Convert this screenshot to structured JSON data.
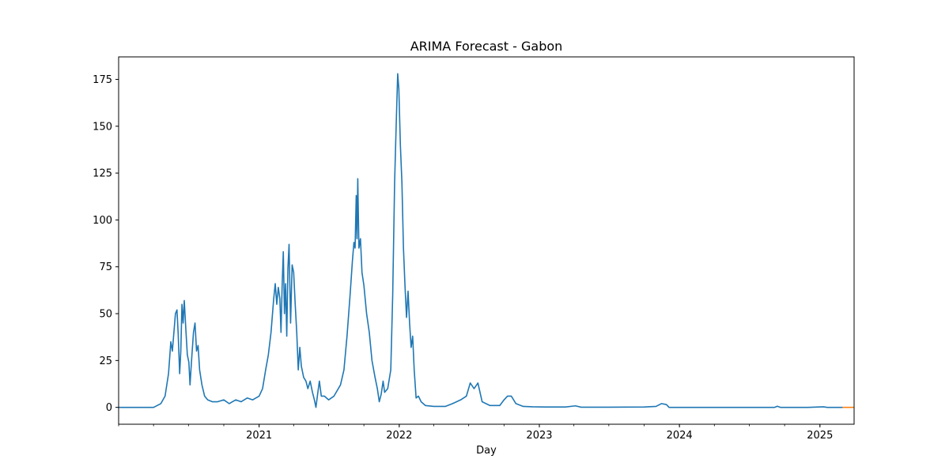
{
  "chart_data": {
    "type": "line",
    "title": "ARIMA Forecast - Gabon",
    "xlabel": "Day",
    "ylabel": "",
    "xlim": [
      "2020-01-01",
      "2025-03-31"
    ],
    "ylim": [
      -9,
      187
    ],
    "y_ticks": [
      0,
      25,
      50,
      75,
      100,
      125,
      150,
      175
    ],
    "x_ticks": [
      {
        "date": "2021-01-01",
        "label": "2021"
      },
      {
        "date": "2022-01-01",
        "label": "2022"
      },
      {
        "date": "2023-01-01",
        "label": "2023"
      },
      {
        "date": "2024-01-01",
        "label": "2024"
      },
      {
        "date": "2025-01-01",
        "label": "2025"
      }
    ],
    "grid": false,
    "series": [
      {
        "name": "",
        "color": "#1f77b4",
        "points": [
          [
            "2020-01-01",
            0
          ],
          [
            "2020-04-01",
            0
          ],
          [
            "2020-04-20",
            2
          ],
          [
            "2020-05-01",
            6
          ],
          [
            "2020-05-10",
            18
          ],
          [
            "2020-05-16",
            35
          ],
          [
            "2020-05-20",
            30
          ],
          [
            "2020-05-24",
            40
          ],
          [
            "2020-05-28",
            50
          ],
          [
            "2020-06-01",
            52
          ],
          [
            "2020-06-04",
            40
          ],
          [
            "2020-06-08",
            18
          ],
          [
            "2020-06-11",
            30
          ],
          [
            "2020-06-14",
            55
          ],
          [
            "2020-06-17",
            45
          ],
          [
            "2020-06-20",
            57
          ],
          [
            "2020-06-24",
            42
          ],
          [
            "2020-06-28",
            28
          ],
          [
            "2020-07-02",
            24
          ],
          [
            "2020-07-05",
            12
          ],
          [
            "2020-07-09",
            25
          ],
          [
            "2020-07-14",
            40
          ],
          [
            "2020-07-18",
            45
          ],
          [
            "2020-07-22",
            30
          ],
          [
            "2020-07-26",
            33
          ],
          [
            "2020-07-30",
            20
          ],
          [
            "2020-08-05",
            12
          ],
          [
            "2020-08-12",
            6
          ],
          [
            "2020-08-20",
            4
          ],
          [
            "2020-09-01",
            3
          ],
          [
            "2020-09-15",
            3
          ],
          [
            "2020-10-01",
            4
          ],
          [
            "2020-10-15",
            2
          ],
          [
            "2020-11-01",
            4
          ],
          [
            "2020-11-15",
            3
          ],
          [
            "2020-12-01",
            5
          ],
          [
            "2020-12-15",
            4
          ],
          [
            "2021-01-01",
            6
          ],
          [
            "2021-01-10",
            10
          ],
          [
            "2021-01-18",
            20
          ],
          [
            "2021-01-25",
            28
          ],
          [
            "2021-02-01",
            40
          ],
          [
            "2021-02-08",
            58
          ],
          [
            "2021-02-12",
            66
          ],
          [
            "2021-02-16",
            55
          ],
          [
            "2021-02-20",
            64
          ],
          [
            "2021-02-24",
            58
          ],
          [
            "2021-02-27",
            40
          ],
          [
            "2021-03-02",
            65
          ],
          [
            "2021-03-05",
            83
          ],
          [
            "2021-03-08",
            50
          ],
          [
            "2021-03-11",
            66
          ],
          [
            "2021-03-14",
            38
          ],
          [
            "2021-03-17",
            74
          ],
          [
            "2021-03-20",
            87
          ],
          [
            "2021-03-24",
            45
          ],
          [
            "2021-03-28",
            76
          ],
          [
            "2021-04-01",
            72
          ],
          [
            "2021-04-05",
            55
          ],
          [
            "2021-04-09",
            40
          ],
          [
            "2021-04-13",
            20
          ],
          [
            "2021-04-17",
            32
          ],
          [
            "2021-04-21",
            22
          ],
          [
            "2021-04-27",
            16
          ],
          [
            "2021-05-03",
            14
          ],
          [
            "2021-05-08",
            10
          ],
          [
            "2021-05-14",
            14
          ],
          [
            "2021-05-20",
            8
          ],
          [
            "2021-05-25",
            4
          ],
          [
            "2021-05-29",
            0
          ],
          [
            "2021-06-03",
            8
          ],
          [
            "2021-06-07",
            14
          ],
          [
            "2021-06-12",
            6
          ],
          [
            "2021-06-20",
            6
          ],
          [
            "2021-07-01",
            4
          ],
          [
            "2021-07-15",
            6
          ],
          [
            "2021-08-01",
            12
          ],
          [
            "2021-08-10",
            20
          ],
          [
            "2021-08-18",
            38
          ],
          [
            "2021-08-26",
            60
          ],
          [
            "2021-09-01",
            78
          ],
          [
            "2021-09-05",
            88
          ],
          [
            "2021-09-08",
            85
          ],
          [
            "2021-09-11",
            113
          ],
          [
            "2021-09-13",
            90
          ],
          [
            "2021-09-15",
            122
          ],
          [
            "2021-09-18",
            85
          ],
          [
            "2021-09-22",
            90
          ],
          [
            "2021-09-26",
            72
          ],
          [
            "2021-10-01",
            65
          ],
          [
            "2021-10-08",
            50
          ],
          [
            "2021-10-15",
            40
          ],
          [
            "2021-10-22",
            25
          ],
          [
            "2021-10-30",
            16
          ],
          [
            "2021-11-05",
            10
          ],
          [
            "2021-11-10",
            3
          ],
          [
            "2021-11-15",
            7
          ],
          [
            "2021-11-20",
            14
          ],
          [
            "2021-11-24",
            8
          ],
          [
            "2021-12-02",
            10
          ],
          [
            "2021-12-10",
            20
          ],
          [
            "2021-12-15",
            60
          ],
          [
            "2021-12-20",
            120
          ],
          [
            "2021-12-24",
            150
          ],
          [
            "2021-12-28",
            178
          ],
          [
            "2021-12-31",
            170
          ],
          [
            "2022-01-04",
            140
          ],
          [
            "2022-01-08",
            120
          ],
          [
            "2022-01-12",
            85
          ],
          [
            "2022-01-16",
            65
          ],
          [
            "2022-01-20",
            48
          ],
          [
            "2022-01-24",
            62
          ],
          [
            "2022-01-28",
            45
          ],
          [
            "2022-02-01",
            32
          ],
          [
            "2022-02-05",
            38
          ],
          [
            "2022-02-09",
            20
          ],
          [
            "2022-02-14",
            5
          ],
          [
            "2022-02-20",
            6
          ],
          [
            "2022-02-27",
            3
          ],
          [
            "2022-03-10",
            1
          ],
          [
            "2022-04-01",
            0.5
          ],
          [
            "2022-05-01",
            0.5
          ],
          [
            "2022-05-20",
            2
          ],
          [
            "2022-06-10",
            4
          ],
          [
            "2022-06-25",
            6
          ],
          [
            "2022-07-05",
            13
          ],
          [
            "2022-07-15",
            10
          ],
          [
            "2022-07-25",
            13
          ],
          [
            "2022-08-05",
            3
          ],
          [
            "2022-08-25",
            1
          ],
          [
            "2022-09-20",
            1
          ],
          [
            "2022-10-01",
            4
          ],
          [
            "2022-10-10",
            6
          ],
          [
            "2022-10-20",
            6
          ],
          [
            "2022-11-01",
            2
          ],
          [
            "2022-11-20",
            0.5
          ],
          [
            "2022-12-15",
            0.3
          ],
          [
            "2023-01-15",
            0.2
          ],
          [
            "2023-03-10",
            0.2
          ],
          [
            "2023-04-05",
            0.8
          ],
          [
            "2023-04-20",
            0.1
          ],
          [
            "2023-07-01",
            0.1
          ],
          [
            "2023-10-01",
            0.2
          ],
          [
            "2023-11-01",
            0.5
          ],
          [
            "2023-11-15",
            2
          ],
          [
            "2023-11-28",
            1.5
          ],
          [
            "2023-12-05",
            0
          ],
          [
            "2024-06-01",
            0
          ],
          [
            "2024-09-05",
            0
          ],
          [
            "2024-09-12",
            0.6
          ],
          [
            "2024-09-20",
            0
          ],
          [
            "2024-12-01",
            0
          ],
          [
            "2025-01-10",
            0.3
          ],
          [
            "2025-01-20",
            0
          ],
          [
            "2025-03-01",
            0
          ]
        ]
      },
      {
        "name": "",
        "color": "#ff7f0e",
        "points": [
          [
            "2025-03-01",
            0
          ],
          [
            "2025-03-31",
            0
          ]
        ]
      }
    ]
  }
}
